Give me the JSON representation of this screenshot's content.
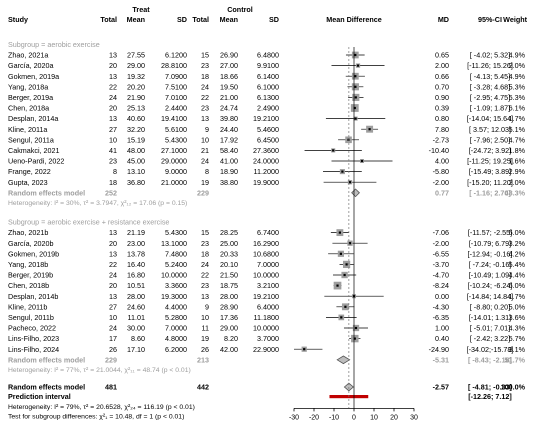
{
  "chart_data": {
    "type": "forest",
    "axis": {
      "xlim": [
        -30,
        30
      ],
      "ticks": [
        -30,
        -20,
        -10,
        0,
        10,
        20,
        30
      ]
    },
    "header": {
      "group_treat": "Treat",
      "group_control": "Control",
      "study": "Study",
      "total": "Total",
      "mean": "Mean",
      "sd": "SD",
      "md_plot": "Mean Difference",
      "md": "MD",
      "ci": "95%-CI",
      "weight": "Weight"
    },
    "subgroups": [
      {
        "label": "Subgroup = aerobic exercise",
        "studies": [
          {
            "study": "Zhao, 2021a",
            "tn": "13",
            "tm": "27.55",
            "tsd": "6.1200",
            "cn": "15",
            "cm": "26.90",
            "csd": "6.4800",
            "md": 0.65,
            "lo": -4.02,
            "hi": 5.32,
            "md_text": "0.65",
            "ci_text": "[ -4.02;  5.32]",
            "weight": "4.9%"
          },
          {
            "study": "García, 2020a",
            "tn": "20",
            "tm": "29.00",
            "tsd": "28.8100",
            "cn": "23",
            "cm": "27.00",
            "csd": "9.9100",
            "md": 2.0,
            "lo": -11.26,
            "hi": 15.26,
            "md_text": "2.00",
            "ci_text": "[-11.26; 15.26]",
            "weight": "2.0%"
          },
          {
            "study": "Gokmen, 2019a",
            "tn": "13",
            "tm": "19.32",
            "tsd": "7.0900",
            "cn": "18",
            "cm": "18.66",
            "csd": "6.1400",
            "md": 0.66,
            "lo": -4.13,
            "hi": 5.45,
            "md_text": "0.66",
            "ci_text": "[ -4.13;  5.45]",
            "weight": "4.9%"
          },
          {
            "study": "Yang, 2018a",
            "tn": "22",
            "tm": "20.20",
            "tsd": "7.5100",
            "cn": "24",
            "cm": "19.50",
            "csd": "6.1000",
            "md": 0.7,
            "lo": -3.28,
            "hi": 4.68,
            "md_text": "0.70",
            "ci_text": "[ -3.28;  4.68]",
            "weight": "5.3%"
          },
          {
            "study": "Berger, 2019a",
            "tn": "24",
            "tm": "21.90",
            "tsd": "7.0100",
            "cn": "22",
            "cm": "21.00",
            "csd": "6.1300",
            "md": 0.9,
            "lo": -2.95,
            "hi": 4.75,
            "md_text": "0.90",
            "ci_text": "[ -2.95;  4.75]",
            "weight": "5.3%"
          },
          {
            "study": "Chen, 2018a",
            "tn": "20",
            "tm": "25.13",
            "tsd": "2.4400",
            "cn": "23",
            "cm": "24.74",
            "csd": "2.4900",
            "md": 0.39,
            "lo": -1.09,
            "hi": 1.87,
            "md_text": "0.39",
            "ci_text": "[ -1.09;  1.87]",
            "weight": "6.1%"
          },
          {
            "study": "Desplan, 2014a",
            "tn": "13",
            "tm": "40.60",
            "tsd": "19.4100",
            "cn": "13",
            "cm": "39.80",
            "csd": "19.2100",
            "md": 0.8,
            "lo": -14.04,
            "hi": 15.64,
            "md_text": "0.80",
            "ci_text": "[-14.04; 15.64]",
            "weight": "1.7%"
          },
          {
            "study": "Kline, 2011a",
            "tn": "27",
            "tm": "32.20",
            "tsd": "5.6100",
            "cn": "9",
            "cm": "24.40",
            "csd": "5.4600",
            "md": 7.8,
            "lo": 3.57,
            "hi": 12.03,
            "md_text": "7.80",
            "ci_text": "[  3.57; 12.03]",
            "weight": "5.1%"
          },
          {
            "study": "Sengul, 2011a",
            "tn": "10",
            "tm": "15.19",
            "tsd": "5.4300",
            "cn": "10",
            "cm": "17.92",
            "csd": "6.4500",
            "md": -2.73,
            "lo": -7.96,
            "hi": 2.5,
            "md_text": "-2.73",
            "ci_text": "[ -7.96;  2.50]",
            "weight": "4.7%"
          },
          {
            "study": "Cakmakci, 2021",
            "tn": "41",
            "tm": "48.00",
            "tsd": "27.1000",
            "cn": "21",
            "cm": "58.40",
            "csd": "27.3600",
            "md": -10.4,
            "lo": -24.72,
            "hi": 3.92,
            "md_text": "-10.40",
            "ci_text": "[-24.72;  3.92]",
            "weight": "1.8%"
          },
          {
            "study": "Ueno-Pardi, 2022",
            "tn": "23",
            "tm": "45.00",
            "tsd": "29.0000",
            "cn": "24",
            "cm": "41.00",
            "csd": "24.0000",
            "md": 4.0,
            "lo": -11.25,
            "hi": 19.25,
            "md_text": "4.00",
            "ci_text": "[-11.25; 19.25]",
            "weight": "1.6%"
          },
          {
            "study": "Frange, 2022",
            "tn": "8",
            "tm": "13.10",
            "tsd": "9.0000",
            "cn": "8",
            "cm": "18.90",
            "csd": "11.2000",
            "md": -5.8,
            "lo": -15.49,
            "hi": 3.89,
            "md_text": "-5.80",
            "ci_text": "[-15.49;  3.89]",
            "weight": "2.9%"
          },
          {
            "study": "Gupta, 2023",
            "tn": "18",
            "tm": "36.80",
            "tsd": "21.0000",
            "cn": "19",
            "cm": "38.80",
            "csd": "19.9000",
            "md": -2.0,
            "lo": -15.2,
            "hi": 11.2,
            "md_text": "-2.00",
            "ci_text": "[-15.20; 11.20]",
            "weight": "2.0%"
          }
        ],
        "random": {
          "label": "Random effects model",
          "tn": "252",
          "cn": "229",
          "md": 0.77,
          "lo": -1.16,
          "hi": 2.7,
          "md_text": "0.77",
          "ci_text": "[ -1.16;  2.70]",
          "weight": "48.3%"
        },
        "heterogeneity": "Heterogeneity: I² = 30%, τ² = 3.7947, χ²₁₂ = 17.06 (p = 0.15)"
      },
      {
        "label": "Subgroup = aerobic exercise + resistance exercise",
        "studies": [
          {
            "study": "Zhao, 2021b",
            "tn": "13",
            "tm": "21.19",
            "tsd": "5.4300",
            "cn": "15",
            "cm": "28.25",
            "csd": "6.7400",
            "md": -7.06,
            "lo": -11.57,
            "hi": -2.55,
            "md_text": "-7.06",
            "ci_text": "[-11.57; -2.55]",
            "weight": "5.0%"
          },
          {
            "study": "García, 2020b",
            "tn": "20",
            "tm": "23.00",
            "tsd": "13.1000",
            "cn": "23",
            "cm": "25.00",
            "csd": "16.2900",
            "md": -2.0,
            "lo": -10.79,
            "hi": 6.79,
            "md_text": "-2.00",
            "ci_text": "[-10.79;  6.79]",
            "weight": "3.2%"
          },
          {
            "study": "Gokmen, 2019b",
            "tn": "13",
            "tm": "13.78",
            "tsd": "7.4800",
            "cn": "18",
            "cm": "20.33",
            "csd": "10.6800",
            "md": -6.55,
            "lo": -12.94,
            "hi": -0.16,
            "md_text": "-6.55",
            "ci_text": "[-12.94; -0.16]",
            "weight": "4.2%"
          },
          {
            "study": "Yang, 2018b",
            "tn": "22",
            "tm": "16.40",
            "tsd": "5.2400",
            "cn": "24",
            "cm": "20.10",
            "csd": "7.0000",
            "md": -3.7,
            "lo": -7.24,
            "hi": -0.16,
            "md_text": "-3.70",
            "ci_text": "[ -7.24; -0.16]",
            "weight": "5.4%"
          },
          {
            "study": "Berger, 2019b",
            "tn": "24",
            "tm": "16.80",
            "tsd": "10.0000",
            "cn": "22",
            "cm": "21.50",
            "csd": "10.0000",
            "md": -4.7,
            "lo": -10.49,
            "hi": 1.09,
            "md_text": "-4.70",
            "ci_text": "[-10.49;  1.09]",
            "weight": "4.4%"
          },
          {
            "study": "Chen, 2018b",
            "tn": "20",
            "tm": "10.51",
            "tsd": "3.3600",
            "cn": "23",
            "cm": "18.75",
            "csd": "3.2100",
            "md": -8.24,
            "lo": -10.24,
            "hi": -6.24,
            "md_text": "-8.24",
            "ci_text": "[-10.24; -6.24]",
            "weight": "6.0%"
          },
          {
            "study": "Desplan, 2014b",
            "tn": "13",
            "tm": "28.00",
            "tsd": "19.3000",
            "cn": "13",
            "cm": "28.00",
            "csd": "19.2100",
            "md": 0.0,
            "lo": -14.84,
            "hi": 14.84,
            "md_text": "0.00",
            "ci_text": "[-14.84; 14.84]",
            "weight": "1.7%"
          },
          {
            "study": "Kline, 2011b",
            "tn": "27",
            "tm": "24.60",
            "tsd": "4.4000",
            "cn": "9",
            "cm": "28.90",
            "csd": "6.4000",
            "md": -4.3,
            "lo": -8.8,
            "hi": 0.2,
            "md_text": "-4.30",
            "ci_text": "[ -8.80;  0.20]",
            "weight": "5.0%"
          },
          {
            "study": "Sengul, 2011b",
            "tn": "10",
            "tm": "11.01",
            "tsd": "5.2800",
            "cn": "10",
            "cm": "17.36",
            "csd": "11.1800",
            "md": -6.35,
            "lo": -14.01,
            "hi": 1.31,
            "md_text": "-6.35",
            "ci_text": "[-14.01;  1.31]",
            "weight": "3.6%"
          },
          {
            "study": "Pacheco, 2022",
            "tn": "24",
            "tm": "30.00",
            "tsd": "7.0000",
            "cn": "11",
            "cm": "29.00",
            "csd": "10.0000",
            "md": 1.0,
            "lo": -5.01,
            "hi": 7.01,
            "md_text": "1.00",
            "ci_text": "[ -5.01;  7.01]",
            "weight": "4.3%"
          },
          {
            "study": "Lins-Filho, 2023",
            "tn": "17",
            "tm": "8.60",
            "tsd": "4.8000",
            "cn": "19",
            "cm": "8.20",
            "csd": "3.7000",
            "md": 0.4,
            "lo": -2.42,
            "hi": 3.22,
            "md_text": "0.40",
            "ci_text": "[ -2.42;  3.22]",
            "weight": "5.7%"
          },
          {
            "study": "Lins-Filho, 2024",
            "tn": "26",
            "tm": "17.10",
            "tsd": "6.2000",
            "cn": "26",
            "cm": "42.00",
            "csd": "22.9000",
            "md": -24.9,
            "lo": -34.02,
            "hi": -15.78,
            "md_text": "-24.90",
            "ci_text": "[-34.02;-15.78]",
            "weight": "3.1%"
          }
        ],
        "random": {
          "label": "Random effects model",
          "tn": "229",
          "cn": "213",
          "md": -5.31,
          "lo": -8.43,
          "hi": -2.18,
          "md_text": "-5.31",
          "ci_text": "[ -8.43; -2.18]",
          "weight": "51.7%"
        },
        "heterogeneity": "Heterogeneity: I² = 77%, τ² = 21.0044, χ²₁₁ = 48.74 (p < 0.01)"
      }
    ],
    "overall": {
      "label": "Random effects model",
      "tn": "481",
      "cn": "442",
      "md": -2.57,
      "lo": -4.81,
      "hi": -0.33,
      "md_text": "-2.57",
      "ci_text": "[ -4.81; -0.33]",
      "weight": "100.0%"
    },
    "prediction": {
      "label": "Prediction interval",
      "lo": -12.26,
      "hi": 7.12,
      "ci_text": "[-12.26;  7.12]"
    },
    "heterogeneity": "Heterogeneity: I² = 79%, τ² = 20.6528, χ²₂₄ = 116.19 (p < 0.01)",
    "subgroup_test": "Test for subgroup differences: χ²₁ = 10.48, df = 1 (p < 0.01)",
    "colors": {
      "diamond_fill": "#bdbdbd",
      "prediction": "#c00000",
      "subgroup_text": "#9e9e9e",
      "square": "#9e9e9e"
    }
  }
}
